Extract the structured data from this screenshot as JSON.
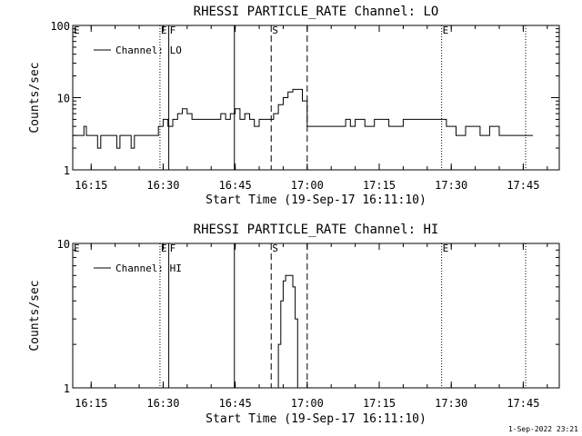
{
  "chart_data": [
    {
      "type": "line",
      "title": "RHESSI PARTICLE_RATE Channel: LO",
      "xlabel": "Start Time (19-Sep-17 16:11:10)",
      "ylabel": "Counts/sec",
      "yscale": "log",
      "ylim": [
        1,
        100
      ],
      "yticks": [
        {
          "v": 1,
          "label": "1"
        },
        {
          "v": 10,
          "label": "10"
        },
        {
          "v": 100,
          "label": "100"
        }
      ],
      "xlim": [
        "16:11:10",
        "17:52:30"
      ],
      "xticks": [
        "16:15",
        "16:30",
        "16:45",
        "17:00",
        "17:15",
        "17:30",
        "17:45"
      ],
      "legend": {
        "entries": [
          "Channel: LO"
        ],
        "position": "top-left"
      },
      "grid": false,
      "vlines": [
        {
          "t": "16:29:20",
          "style": "dotted",
          "label": "E"
        },
        {
          "t": "16:31:10",
          "style": "solid",
          "label": "F"
        },
        {
          "t": "16:44:50",
          "style": "solid",
          "label": ""
        },
        {
          "t": "16:52:30",
          "style": "dashed",
          "label": "S"
        },
        {
          "t": "17:00:00",
          "style": "dashed",
          "label": ""
        },
        {
          "t": "17:28:00",
          "style": "dotted",
          "label": "E"
        },
        {
          "t": "17:45:30",
          "style": "dotted",
          "label": ""
        }
      ],
      "edge_labels": [
        {
          "t": "16:11:10",
          "label": "E"
        }
      ],
      "series": [
        {
          "name": "Channel: LO",
          "x": [
            "16:11:10",
            "16:13:00",
            "16:13:30",
            "16:14:00",
            "16:15:00",
            "16:16:00",
            "16:16:20",
            "16:17:00",
            "16:20:00",
            "16:20:20",
            "16:21:00",
            "16:23:00",
            "16:23:20",
            "16:24:00",
            "16:27:00",
            "16:28:00",
            "16:29:00",
            "16:30:00",
            "16:31:00",
            "16:32:00",
            "16:33:00",
            "16:34:00",
            "16:35:00",
            "16:36:00",
            "16:38:00",
            "16:40:00",
            "16:42:00",
            "16:43:00",
            "16:44:00",
            "16:45:00",
            "16:46:00",
            "16:47:00",
            "16:48:00",
            "16:49:00",
            "16:50:00",
            "16:51:00",
            "16:52:00",
            "16:53:00",
            "16:54:00",
            "16:55:00",
            "16:56:00",
            "16:57:00",
            "16:58:00",
            "16:59:00",
            "17:00:00",
            "17:02:00",
            "17:05:00",
            "17:07:00",
            "17:08:00",
            "17:09:00",
            "17:10:00",
            "17:12:00",
            "17:14:00",
            "17:17:00",
            "17:20:00",
            "17:25:00",
            "17:28:00",
            "17:29:00",
            "17:30:00",
            "17:31:00",
            "17:33:00",
            "17:36:00",
            "17:38:00",
            "17:40:00",
            "17:43:00",
            "17:46:00",
            "17:47:00"
          ],
          "values": [
            3,
            3,
            4,
            3,
            3,
            3,
            2,
            3,
            3,
            2,
            3,
            3,
            2,
            3,
            3,
            3,
            4,
            5,
            4,
            5,
            6,
            7,
            6,
            5,
            5,
            5,
            6,
            5,
            6,
            7,
            5,
            6,
            5,
            4,
            5,
            5,
            5,
            6,
            8,
            10,
            12,
            13,
            13,
            9,
            4,
            4,
            4,
            4,
            5,
            4,
            5,
            4,
            5,
            4,
            5,
            5,
            5,
            4,
            4,
            3,
            4,
            3,
            4,
            3,
            3,
            3,
            3
          ]
        }
      ]
    },
    {
      "type": "line",
      "title": "RHESSI PARTICLE_RATE Channel: HI",
      "xlabel": "Start Time (19-Sep-17 16:11:10)",
      "ylabel": "Counts/sec",
      "yscale": "log",
      "ylim": [
        1,
        10
      ],
      "yticks": [
        {
          "v": 1,
          "label": "1"
        },
        {
          "v": 10,
          "label": "10"
        }
      ],
      "xlim": [
        "16:11:10",
        "17:52:30"
      ],
      "xticks": [
        "16:15",
        "16:30",
        "16:45",
        "17:00",
        "17:15",
        "17:30",
        "17:45"
      ],
      "legend": {
        "entries": [
          "Channel: HI"
        ],
        "position": "top-left"
      },
      "grid": false,
      "vlines": [
        {
          "t": "16:29:20",
          "style": "dotted",
          "label": "E"
        },
        {
          "t": "16:31:10",
          "style": "solid",
          "label": "F"
        },
        {
          "t": "16:44:50",
          "style": "solid",
          "label": ""
        },
        {
          "t": "16:52:30",
          "style": "dashed",
          "label": "S"
        },
        {
          "t": "17:00:00",
          "style": "dashed",
          "label": ""
        },
        {
          "t": "17:28:00",
          "style": "dotted",
          "label": "E"
        },
        {
          "t": "17:45:30",
          "style": "dotted",
          "label": ""
        }
      ],
      "edge_labels": [
        {
          "t": "16:11:10",
          "label": "E"
        }
      ],
      "series": [
        {
          "name": "Channel: HI",
          "x": [
            "16:53:30",
            "16:54:00",
            "16:54:30",
            "16:55:00",
            "16:55:30",
            "16:56:00",
            "16:56:30",
            "16:57:00",
            "16:57:30",
            "16:58:00"
          ],
          "values": [
            1,
            2,
            4,
            5.5,
            6,
            6,
            6,
            5,
            3,
            1
          ]
        }
      ]
    }
  ],
  "footer": {
    "timestamp": "1-Sep-2022 23:21"
  }
}
